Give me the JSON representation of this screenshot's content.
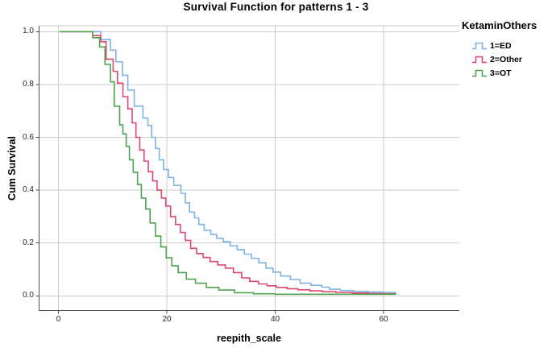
{
  "chart_data": {
    "type": "line",
    "subtype": "kaplan-meier-step-survival",
    "title": "Survival Function for patterns 1 - 3",
    "xlabel": "reepith_scale",
    "ylabel": "Cum Survival",
    "xlim": [
      -3.6,
      74
    ],
    "ylim": [
      -0.055,
      1.02
    ],
    "grid": true,
    "x_axis": {
      "tick_values": [
        0,
        20,
        40,
        60
      ],
      "tick_labels": [
        "0",
        "20",
        "40",
        "60"
      ]
    },
    "y_axis": {
      "tick_values": [
        0.0,
        0.2,
        0.4,
        0.6,
        0.8,
        1.0
      ],
      "tick_labels": [
        "0.0",
        "0.2",
        "0.4",
        "0.6",
        "0.8",
        "1.0"
      ]
    },
    "legend": {
      "title": "KetaminOthers",
      "position": "top-right"
    },
    "series": [
      {
        "label": "1=ED",
        "color": "#7fb2e5",
        "start_x": 0.2,
        "end_x": 62.3,
        "start_value": 1.0,
        "steps": [
          [
            7.8,
            0.97
          ],
          [
            9.6,
            0.93
          ],
          [
            10.6,
            0.886
          ],
          [
            11.8,
            0.835
          ],
          [
            12.8,
            0.779
          ],
          [
            14.0,
            0.718
          ],
          [
            15.6,
            0.673
          ],
          [
            16.5,
            0.645
          ],
          [
            17.2,
            0.6
          ],
          [
            17.9,
            0.558
          ],
          [
            18.6,
            0.515
          ],
          [
            19.4,
            0.478
          ],
          [
            20.3,
            0.448
          ],
          [
            21.3,
            0.418
          ],
          [
            22.6,
            0.388
          ],
          [
            23.4,
            0.352
          ],
          [
            24.2,
            0.317
          ],
          [
            25.1,
            0.295
          ],
          [
            25.9,
            0.27
          ],
          [
            26.9,
            0.248
          ],
          [
            28.1,
            0.232
          ],
          [
            29.2,
            0.218
          ],
          [
            30.4,
            0.205
          ],
          [
            31.7,
            0.19
          ],
          [
            33.0,
            0.175
          ],
          [
            34.3,
            0.158
          ],
          [
            35.6,
            0.142
          ],
          [
            37.0,
            0.125
          ],
          [
            38.3,
            0.105
          ],
          [
            39.6,
            0.09
          ],
          [
            41.0,
            0.075
          ],
          [
            42.8,
            0.062
          ],
          [
            44.6,
            0.048
          ],
          [
            46.6,
            0.04
          ],
          [
            48.6,
            0.033
          ],
          [
            50.0,
            0.025
          ],
          [
            52.0,
            0.02
          ],
          [
            54.5,
            0.017
          ],
          [
            57.0,
            0.015
          ],
          [
            60.0,
            0.013
          ],
          [
            62.0,
            0.012
          ]
        ]
      },
      {
        "label": "2=Other",
        "color": "#e0476f",
        "start_x": 0.2,
        "end_x": 62.3,
        "start_value": 1.0,
        "steps": [
          [
            6.3,
            0.985
          ],
          [
            7.8,
            0.962
          ],
          [
            8.8,
            0.896
          ],
          [
            10.1,
            0.85
          ],
          [
            10.9,
            0.805
          ],
          [
            11.9,
            0.754
          ],
          [
            12.8,
            0.708
          ],
          [
            13.6,
            0.655
          ],
          [
            14.3,
            0.6
          ],
          [
            15.0,
            0.552
          ],
          [
            15.8,
            0.51
          ],
          [
            16.6,
            0.47
          ],
          [
            17.4,
            0.435
          ],
          [
            18.2,
            0.4
          ],
          [
            19.0,
            0.37
          ],
          [
            19.8,
            0.34
          ],
          [
            20.7,
            0.3
          ],
          [
            21.6,
            0.27
          ],
          [
            22.5,
            0.24
          ],
          [
            23.4,
            0.21
          ],
          [
            24.4,
            0.18
          ],
          [
            25.5,
            0.16
          ],
          [
            26.7,
            0.145
          ],
          [
            28.0,
            0.13
          ],
          [
            29.4,
            0.117
          ],
          [
            30.8,
            0.105
          ],
          [
            32.3,
            0.088
          ],
          [
            33.8,
            0.068
          ],
          [
            35.3,
            0.055
          ],
          [
            36.9,
            0.045
          ],
          [
            38.5,
            0.038
          ],
          [
            40.2,
            0.032
          ],
          [
            42.2,
            0.027
          ],
          [
            44.2,
            0.023
          ],
          [
            46.4,
            0.019
          ],
          [
            48.7,
            0.016
          ],
          [
            51.2,
            0.013
          ],
          [
            54.2,
            0.011
          ],
          [
            57.2,
            0.009
          ],
          [
            60.0,
            0.008
          ]
        ]
      },
      {
        "label": "3=OT",
        "color": "#4fa34f",
        "start_x": 0.2,
        "end_x": 62.3,
        "start_value": 1.0,
        "steps": [
          [
            6.3,
            0.977
          ],
          [
            7.6,
            0.942
          ],
          [
            8.6,
            0.876
          ],
          [
            9.6,
            0.81
          ],
          [
            10.3,
            0.718
          ],
          [
            11.3,
            0.647
          ],
          [
            11.9,
            0.613
          ],
          [
            12.5,
            0.566
          ],
          [
            13.1,
            0.515
          ],
          [
            13.8,
            0.468
          ],
          [
            14.6,
            0.422
          ],
          [
            15.3,
            0.37
          ],
          [
            16.1,
            0.329
          ],
          [
            16.9,
            0.276
          ],
          [
            17.9,
            0.226
          ],
          [
            18.9,
            0.185
          ],
          [
            19.9,
            0.144
          ],
          [
            20.9,
            0.114
          ],
          [
            22.1,
            0.088
          ],
          [
            23.6,
            0.063
          ],
          [
            25.3,
            0.048
          ],
          [
            27.3,
            0.032
          ],
          [
            29.6,
            0.022
          ],
          [
            32.5,
            0.012
          ],
          [
            36.0,
            0.008
          ],
          [
            40.0,
            0.006
          ]
        ]
      }
    ]
  },
  "colors": {
    "background": "#ffffff",
    "gridline": "#cdcdcd",
    "plot_top_border": "#c8c8c8",
    "axis_line": "#4f4f4f",
    "tick_text": "#262626",
    "title_text": "#000000"
  }
}
